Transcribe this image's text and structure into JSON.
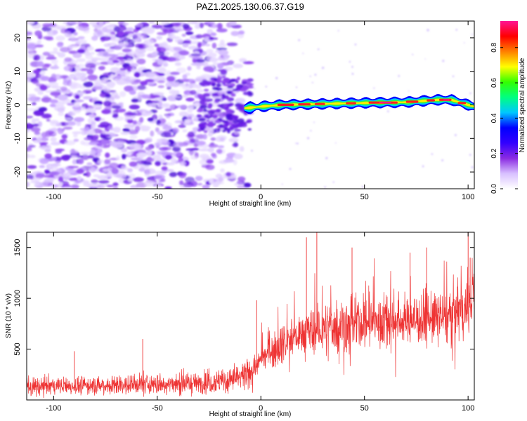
{
  "figure": {
    "title": "PAZ1.2025.130.06.37.G19"
  },
  "chart_data": [
    {
      "type": "heatmap",
      "xlabel": "Height of straight line (km)",
      "ylabel": "Frequency (Hz)",
      "xlim": [
        -113,
        103
      ],
      "ylim": [
        -25,
        25
      ],
      "xticks": [
        -100,
        -50,
        0,
        50,
        100
      ],
      "yticks": [
        -20,
        -10,
        0,
        10,
        20
      ],
      "colorbar": {
        "label": "Normalized spectral amplitude",
        "range": [
          0,
          0.95
        ],
        "ticks": [
          0.0,
          0.2,
          0.4,
          0.6,
          0.8
        ],
        "tick_labels": [
          "0.0",
          "0.2",
          "0.4",
          "0.6",
          "0.8"
        ],
        "colormap": [
          "#ffffff",
          "#d8c0ff",
          "#8a2be2",
          "#3300ff",
          "#0000ff",
          "#00c8ff",
          "#00ff80",
          "#33ff00",
          "#ffff00",
          "#ff8000",
          "#ff0000",
          "#ff1493"
        ]
      },
      "noise_region": {
        "x": [
          -113,
          -5
        ],
        "y": [
          -25,
          25
        ]
      },
      "signal_ridge": [
        {
          "x": -8,
          "y": -1.0
        },
        {
          "x": 0,
          "y": -0.5
        },
        {
          "x": 10,
          "y": 0.0
        },
        {
          "x": 30,
          "y": 0.3
        },
        {
          "x": 50,
          "y": 0.6
        },
        {
          "x": 70,
          "y": 0.8
        },
        {
          "x": 85,
          "y": 1.5
        },
        {
          "x": 92,
          "y": 1.5
        },
        {
          "x": 100,
          "y": 0.0
        },
        {
          "x": 103,
          "y": -0.5
        }
      ]
    },
    {
      "type": "line",
      "xlabel": "Height of straight line (km)",
      "ylabel": "SNR (10 * v/v)",
      "xlim": [
        -113,
        103
      ],
      "ylim": [
        0,
        1650
      ],
      "xticks": [
        -100,
        -50,
        0,
        50,
        100
      ],
      "yticks": [
        500,
        1000,
        1500
      ],
      "color": "#ee3333",
      "baseline": [
        {
          "x": -113,
          "y": 130
        },
        {
          "x": -60,
          "y": 150
        },
        {
          "x": -30,
          "y": 165
        },
        {
          "x": -10,
          "y": 210
        },
        {
          "x": -5,
          "y": 250
        },
        {
          "x": 0,
          "y": 400
        },
        {
          "x": 10,
          "y": 560
        },
        {
          "x": 20,
          "y": 650
        },
        {
          "x": 30,
          "y": 700
        },
        {
          "x": 50,
          "y": 760
        },
        {
          "x": 70,
          "y": 790
        },
        {
          "x": 90,
          "y": 810
        },
        {
          "x": 100,
          "y": 880
        },
        {
          "x": 103,
          "y": 1100
        }
      ],
      "spikes": [
        {
          "x": -57,
          "y": 600
        },
        {
          "x": -90,
          "y": 480
        },
        {
          "x": -2,
          "y": 980
        },
        {
          "x": 22,
          "y": 1600
        },
        {
          "x": 27,
          "y": 1650
        },
        {
          "x": 44,
          "y": 1500
        },
        {
          "x": 72,
          "y": 1450
        },
        {
          "x": 80,
          "y": 1500
        },
        {
          "x": 100,
          "y": 1650
        },
        {
          "x": 101,
          "y": 1400
        }
      ]
    }
  ]
}
